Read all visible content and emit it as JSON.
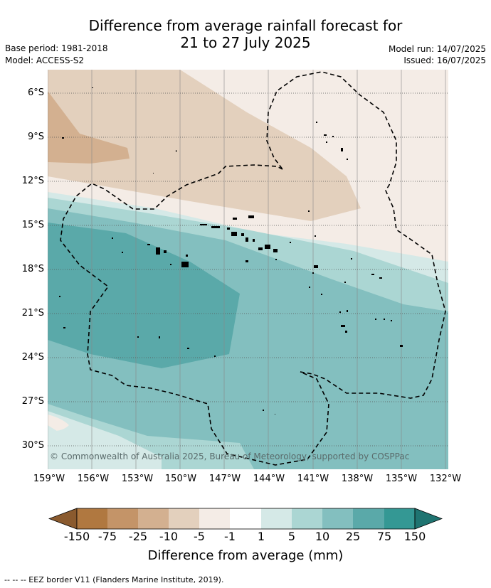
{
  "title": {
    "line1": "Difference from average rainfall forecast for",
    "line2": "21 to 27 July 2025"
  },
  "meta": {
    "base_period": "Base period: 1981-2018",
    "model": "Model: ACCESS-S2",
    "model_run": "Model run: 14/07/2025",
    "issued": "Issued: 16/07/2025"
  },
  "map": {
    "lat_labels": [
      "6°S",
      "9°S",
      "12°S",
      "15°S",
      "18°S",
      "21°S",
      "24°S",
      "27°S",
      "30°S"
    ],
    "lon_labels": [
      "159°W",
      "156°W",
      "153°W",
      "150°W",
      "147°W",
      "144°W",
      "141°W",
      "138°W",
      "135°W",
      "132°W"
    ],
    "copyright": "© Commonwealth of Australia 2025, Bureau of Meteorology, supported by COSPPac",
    "colors": {
      "below_-150": "#8a5a2e",
      "-150_-75": "#b07840",
      "-75_-25": "#c49468",
      "-25_-10": "#d3b090",
      "-10_-5": "#e3d0bd",
      "-5_-1": "#f4ece6",
      "-1_1": "#ffffff",
      "1_5": "#d5e9e7",
      "5_10": "#abd6d3",
      "10_25": "#83bfbf",
      "25_75": "#5aa9a9",
      "75_150": "#349894",
      "above_150": "#1f7471"
    }
  },
  "colorbar": {
    "ticks": [
      "-150",
      "-75",
      "-25",
      "-10",
      "-5",
      "-1",
      "1",
      "5",
      "10",
      "25",
      "75",
      "150"
    ],
    "label": "Difference from average (mm)",
    "colors": [
      "#b07840",
      "#c49468",
      "#d3b090",
      "#e3d0bd",
      "#f4ece6",
      "#ffffff",
      "#d5e9e7",
      "#abd6d3",
      "#83bfbf",
      "#5aa9a9",
      "#349894"
    ],
    "low_extend_color": "#8a5a2e",
    "high_extend_color": "#1f7471"
  },
  "footer": "--  --  -- EEZ border V11 (Flanders Marine Institute, 2019)."
}
